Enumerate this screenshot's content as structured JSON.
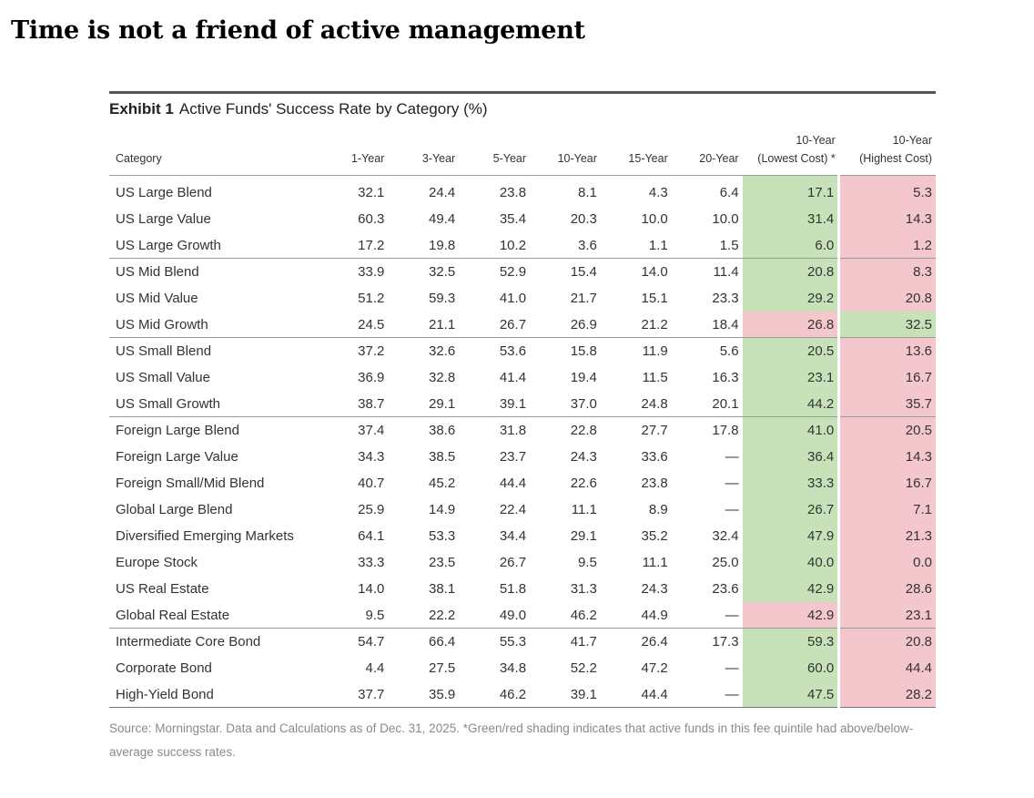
{
  "headline": "Time is not a friend of active management",
  "exhibit": {
    "label": "Exhibit 1",
    "title": "Active Funds' Success Rate by Category (%)"
  },
  "table": {
    "headers": {
      "category": "Category",
      "y1": "1-Year",
      "y3": "3-Year",
      "y5": "5-Year",
      "y10": "10-Year",
      "y15": "15-Year",
      "y20": "20-Year",
      "low_line1": "10-Year",
      "low_line2": "(Lowest Cost) *",
      "high_line1": "10-Year",
      "high_line2": "(Highest Cost)"
    },
    "rows": [
      [
        "US Large Blend",
        "32.1",
        "24.4",
        "23.8",
        "8.1",
        "4.3",
        "6.4",
        "17.1",
        "5.3"
      ],
      [
        "US Large Value",
        "60.3",
        "49.4",
        "35.4",
        "20.3",
        "10.0",
        "10.0",
        "31.4",
        "14.3"
      ],
      [
        "US Large Growth",
        "17.2",
        "19.8",
        "10.2",
        "3.6",
        "1.1",
        "1.5",
        "6.0",
        "1.2"
      ],
      [
        "US Mid Blend",
        "33.9",
        "32.5",
        "52.9",
        "15.4",
        "14.0",
        "11.4",
        "20.8",
        "8.3"
      ],
      [
        "US Mid Value",
        "51.2",
        "59.3",
        "41.0",
        "21.7",
        "15.1",
        "23.3",
        "29.2",
        "20.8"
      ],
      [
        "US Mid Growth",
        "24.5",
        "21.1",
        "26.7",
        "26.9",
        "21.2",
        "18.4",
        "26.8",
        "32.5"
      ],
      [
        "US Small Blend",
        "37.2",
        "32.6",
        "53.6",
        "15.8",
        "11.9",
        "5.6",
        "20.5",
        "13.6"
      ],
      [
        "US Small Value",
        "36.9",
        "32.8",
        "41.4",
        "19.4",
        "11.5",
        "16.3",
        "23.1",
        "16.7"
      ],
      [
        "US Small Growth",
        "38.7",
        "29.1",
        "39.1",
        "37.0",
        "24.8",
        "20.1",
        "44.2",
        "35.7"
      ],
      [
        "Foreign Large Blend",
        "37.4",
        "38.6",
        "31.8",
        "22.8",
        "27.7",
        "17.8",
        "41.0",
        "20.5"
      ],
      [
        "Foreign Large Value",
        "34.3",
        "38.5",
        "23.7",
        "24.3",
        "33.6",
        "—",
        "36.4",
        "14.3"
      ],
      [
        "Foreign Small/Mid Blend",
        "40.7",
        "45.2",
        "44.4",
        "22.6",
        "23.8",
        "—",
        "33.3",
        "16.7"
      ],
      [
        "Global Large Blend",
        "25.9",
        "14.9",
        "22.4",
        "11.1",
        "8.9",
        "—",
        "26.7",
        "7.1"
      ],
      [
        "Diversified Emerging Markets",
        "64.1",
        "53.3",
        "34.4",
        "29.1",
        "35.2",
        "32.4",
        "47.9",
        "21.3"
      ],
      [
        "Europe Stock",
        "33.3",
        "23.5",
        "26.7",
        "9.5",
        "11.1",
        "25.0",
        "40.0",
        "0.0"
      ],
      [
        "US Real Estate",
        "14.0",
        "38.1",
        "51.8",
        "31.3",
        "24.3",
        "23.6",
        "42.9",
        "28.6"
      ],
      [
        "Global Real Estate",
        "9.5",
        "22.2",
        "49.0",
        "46.2",
        "44.9",
        "—",
        "42.9",
        "23.1"
      ],
      [
        "Intermediate Core Bond",
        "54.7",
        "66.4",
        "55.3",
        "41.7",
        "26.4",
        "17.3",
        "59.3",
        "20.8"
      ],
      [
        "Corporate Bond",
        "4.4",
        "27.5",
        "34.8",
        "52.2",
        "47.2",
        "—",
        "60.0",
        "44.4"
      ],
      [
        "High-Yield Bond",
        "37.7",
        "35.9",
        "46.2",
        "39.1",
        "44.4",
        "—",
        "47.5",
        "28.2"
      ]
    ],
    "shading": [
      [
        "green",
        "red"
      ],
      [
        "green",
        "red"
      ],
      [
        "green",
        "red"
      ],
      [
        "green",
        "red"
      ],
      [
        "green",
        "red"
      ],
      [
        "red",
        "green"
      ],
      [
        "green",
        "red"
      ],
      [
        "green",
        "red"
      ],
      [
        "green",
        "red"
      ],
      [
        "green",
        "red"
      ],
      [
        "green",
        "red"
      ],
      [
        "green",
        "red"
      ],
      [
        "green",
        "red"
      ],
      [
        "green",
        "red"
      ],
      [
        "green",
        "red"
      ],
      [
        "green",
        "red"
      ],
      [
        "red",
        "red"
      ],
      [
        "green",
        "red"
      ],
      [
        "green",
        "red"
      ],
      [
        "green",
        "red"
      ]
    ],
    "group_end_rows": [
      2,
      5,
      8,
      16
    ],
    "colors": {
      "green": "#c7e2b9",
      "red": "#f4c7cc"
    }
  },
  "source_note": "Source: Morningstar. Data and Calculations as of Dec. 31, 2025. *Green/red shading indicates that active funds in this fee quintile had above/below-average success rates."
}
